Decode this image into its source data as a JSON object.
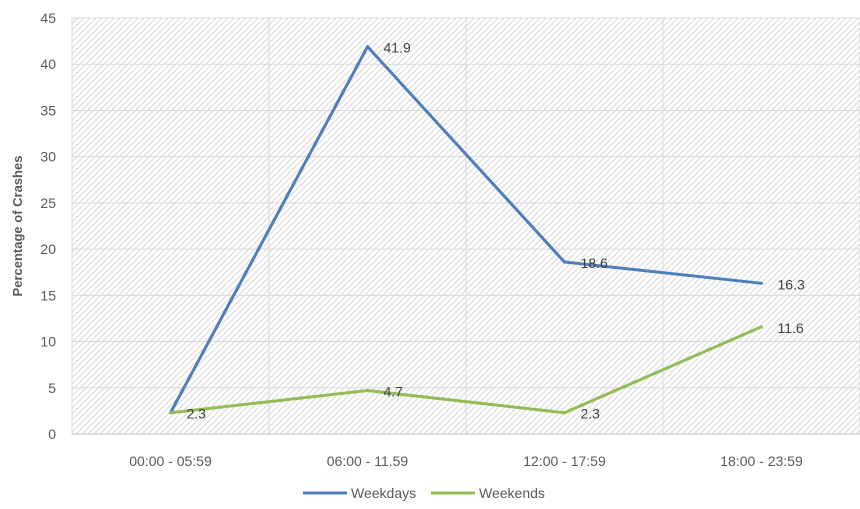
{
  "chart_data": {
    "type": "line",
    "title": "",
    "xlabel": "",
    "ylabel": "Percentage of Crashes",
    "categories": [
      "00:00 - 05:59",
      "06:00 - 11.59",
      "12:00 - 17:59",
      "18:00 - 23:59"
    ],
    "ylim": [
      0,
      45
    ],
    "yticks": [
      "0",
      "5",
      "10",
      "15",
      "20",
      "25",
      "30",
      "35",
      "40",
      "45"
    ],
    "grid": true,
    "legend_position": "bottom",
    "series": [
      {
        "name": "Weekdays",
        "color": "#4f7fba",
        "values": [
          2.3,
          41.9,
          18.6,
          16.3
        ],
        "labels": [
          "",
          "41.9",
          "18.6",
          "16.3"
        ]
      },
      {
        "name": "Weekends",
        "color": "#94bb56",
        "values": [
          2.3,
          4.7,
          2.3,
          11.6
        ],
        "labels": [
          "2.3",
          "4.7",
          "2.3",
          "11.6"
        ]
      }
    ]
  }
}
